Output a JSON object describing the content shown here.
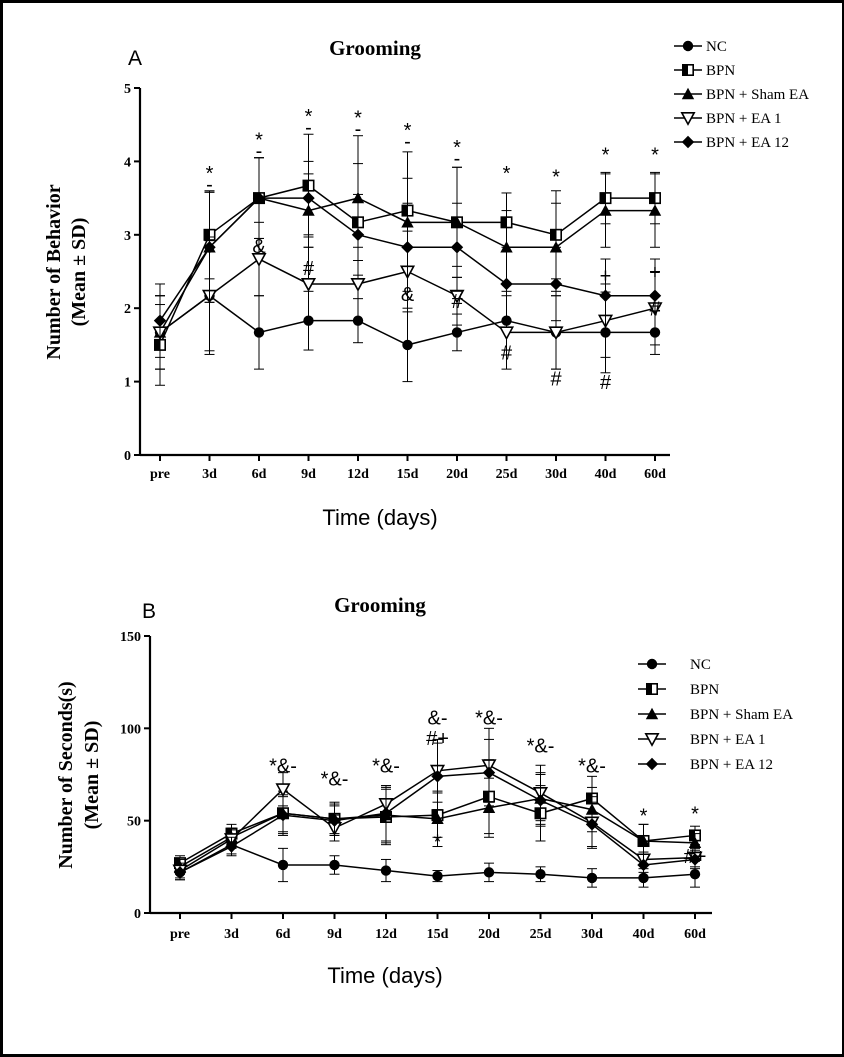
{
  "chart_data": [
    {
      "type": "line",
      "panel": "A",
      "title": "Grooming",
      "ylabel_line1": "Number of Behavior",
      "ylabel_line2": "(Mean ± SD)",
      "xlabel": "Time (days)",
      "categories": [
        "pre",
        "3d",
        "6d",
        "9d",
        "12d",
        "15d",
        "20d",
        "25d",
        "30d",
        "40d",
        "60d"
      ],
      "ylim": [
        0,
        5
      ],
      "yticks": [
        0,
        1,
        2,
        3,
        4,
        5
      ],
      "legend_position": "top-right",
      "series": [
        {
          "name": "NC",
          "marker": "circle",
          "values": [
            1.67,
            2.17,
            1.67,
            1.83,
            1.83,
            1.5,
            1.67,
            1.83,
            1.67,
            1.67,
            1.67
          ],
          "errors": [
            0.5,
            0.75,
            0.5,
            0.4,
            0.3,
            0.5,
            0.25,
            0.4,
            0.5,
            0.55,
            0.3
          ]
        },
        {
          "name": "BPN",
          "marker": "square-half",
          "values": [
            1.5,
            3.0,
            3.5,
            3.67,
            3.17,
            3.33,
            3.17,
            3.17,
            3.0,
            3.5,
            3.5
          ],
          "errors": [
            0.55,
            0.6,
            0.55,
            0.7,
            0.8,
            0.8,
            0.75,
            0.4,
            0.6,
            0.35,
            0.35
          ]
        },
        {
          "name": "BPN + Sham EA",
          "marker": "triangle-up",
          "values": [
            1.67,
            2.83,
            3.5,
            3.33,
            3.5,
            3.17,
            3.17,
            2.83,
            2.83,
            3.33,
            3.33
          ],
          "errors": [
            0.5,
            0.75,
            0.55,
            0.5,
            0.85,
            0.6,
            0.75,
            0.5,
            0.6,
            0.5,
            0.5
          ]
        },
        {
          "name": "BPN + EA 1",
          "marker": "triangle-down",
          "values": [
            1.67,
            2.17,
            2.67,
            2.33,
            2.33,
            2.5,
            2.17,
            1.67,
            1.67,
            1.83,
            2.0
          ],
          "errors": [
            0.5,
            0.8,
            0.5,
            0.5,
            0.5,
            0.55,
            0.4,
            0.5,
            0.5,
            0.5,
            0.5
          ]
        },
        {
          "name": "BPN + EA 12",
          "marker": "diamond",
          "values": [
            1.83,
            2.83,
            3.5,
            3.5,
            3.0,
            2.83,
            2.83,
            2.33,
            2.33,
            2.17,
            2.17
          ],
          "errors": [
            0.5,
            0.75,
            0.55,
            0.5,
            0.55,
            0.6,
            0.6,
            0.5,
            0.5,
            0.5,
            0.5
          ]
        }
      ],
      "annotations": [
        {
          "text": "*",
          "x": "3d",
          "y": 3.75
        },
        {
          "text": "-",
          "x": "3d",
          "y": 3.6
        },
        {
          "text": "*",
          "x": "6d",
          "y": 4.2
        },
        {
          "text": "-",
          "x": "6d",
          "y": 4.05
        },
        {
          "text": "*",
          "x": "9d",
          "y": 4.52
        },
        {
          "text": "-",
          "x": "9d",
          "y": 4.37
        },
        {
          "text": "*",
          "x": "12d",
          "y": 4.5
        },
        {
          "text": "-",
          "x": "12d",
          "y": 4.35
        },
        {
          "text": "*",
          "x": "15d",
          "y": 4.33
        },
        {
          "text": "-",
          "x": "15d",
          "y": 4.18
        },
        {
          "text": "*",
          "x": "20d",
          "y": 4.1
        },
        {
          "text": "-",
          "x": "20d",
          "y": 3.95
        },
        {
          "text": "*",
          "x": "25d",
          "y": 3.75
        },
        {
          "text": "*",
          "x": "30d",
          "y": 3.7
        },
        {
          "text": "*",
          "x": "40d",
          "y": 4.0
        },
        {
          "text": "*",
          "x": "60d",
          "y": 4.0
        },
        {
          "text": "&",
          "x": "6d",
          "y": 2.75
        },
        {
          "text": "&",
          "x": "15d",
          "y": 2.1
        },
        {
          "text": "#",
          "x": "9d",
          "y": 2.45
        },
        {
          "text": "#",
          "x": "20d",
          "y": 2.0
        },
        {
          "text": "#",
          "x": "25d",
          "y": 1.3
        },
        {
          "text": "#",
          "x": "30d",
          "y": 0.95
        },
        {
          "text": "#",
          "x": "40d",
          "y": 0.9
        },
        {
          "text": "#",
          "x": "60d",
          "y": 1.9
        },
        {
          "text": "+",
          "x": "40d",
          "y": 2.35
        },
        {
          "text": "+",
          "x": "60d",
          "y": 2.4
        }
      ]
    },
    {
      "type": "line",
      "panel": "B",
      "title": "Grooming",
      "ylabel_line1": "Number of Seconds(s)",
      "ylabel_line2": "(Mean ± SD)",
      "xlabel": "Time (days)",
      "categories": [
        "pre",
        "3d",
        "6d",
        "9d",
        "12d",
        "15d",
        "20d",
        "25d",
        "30d",
        "40d",
        "60d"
      ],
      "ylim": [
        0,
        150
      ],
      "yticks": [
        0,
        50,
        100,
        150
      ],
      "legend_position": "top-right",
      "series": [
        {
          "name": "NC",
          "marker": "circle",
          "values": [
            22,
            37,
            26,
            26,
            23,
            20,
            22,
            21,
            19,
            19,
            21
          ],
          "errors": [
            4,
            5,
            9,
            5,
            6,
            3,
            5,
            4,
            5,
            5,
            7
          ]
        },
        {
          "name": "BPN",
          "marker": "square-half",
          "values": [
            27,
            43,
            54,
            51,
            52,
            53,
            63,
            54,
            62,
            39,
            42
          ],
          "errors": [
            4,
            5,
            12,
            9,
            15,
            12,
            20,
            15,
            12,
            9,
            5
          ]
        },
        {
          "name": "BPN + Sham EA",
          "marker": "triangle-up",
          "values": [
            25,
            41,
            54,
            51,
            53,
            51,
            57,
            62,
            56,
            39,
            38
          ],
          "errors": [
            4,
            5,
            10,
            8,
            15,
            15,
            16,
            14,
            12,
            9,
            5
          ]
        },
        {
          "name": "BPN + EA 1",
          "marker": "triangle-down",
          "values": [
            23,
            40,
            67,
            46,
            59,
            77,
            80,
            65,
            49,
            29,
            30
          ],
          "errors": [
            4,
            5,
            9,
            7,
            10,
            17,
            20,
            15,
            14,
            7,
            5
          ]
        },
        {
          "name": "BPN + EA 12",
          "marker": "diamond",
          "values": [
            22,
            36,
            53,
            50,
            54,
            74,
            76,
            61,
            48,
            26,
            29
          ],
          "errors": [
            4,
            5,
            10,
            8,
            15,
            18,
            18,
            14,
            12,
            7,
            5
          ]
        }
      ],
      "annotations": [
        {
          "text": "*&-",
          "x": "6d",
          "y": 76
        },
        {
          "text": "*&-",
          "x": "9d",
          "y": 69
        },
        {
          "text": "*&-",
          "x": "12d",
          "y": 76
        },
        {
          "text": "&-",
          "x": "15d",
          "y": 102
        },
        {
          "text": "#+",
          "x": "15d",
          "y": 91
        },
        {
          "text": "*",
          "x": "15d",
          "y": 35
        },
        {
          "text": "*&-",
          "x": "20d",
          "y": 102
        },
        {
          "text": "*&-",
          "x": "25d",
          "y": 87
        },
        {
          "text": "*&-",
          "x": "30d",
          "y": 76
        },
        {
          "text": "*",
          "x": "40d",
          "y": 49
        },
        {
          "text": "*",
          "x": "60d",
          "y": 50
        },
        {
          "text": "#+",
          "x": "60d",
          "y": 27
        }
      ]
    }
  ]
}
